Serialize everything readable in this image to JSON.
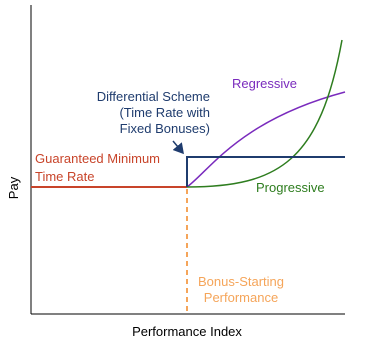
{
  "axes": {
    "y_label": "Pay",
    "x_label": "Performance Index"
  },
  "labels": {
    "differential": [
      "Differential Scheme",
      "(Time Rate with",
      "Fixed Bonuses)"
    ],
    "guaranteed": [
      "Guaranteed Minimum",
      "Time Rate"
    ],
    "regressive": "Regressive",
    "progressive": "Progressive",
    "bonus_start": [
      "Bonus-Starting",
      "Performance"
    ]
  }
}
